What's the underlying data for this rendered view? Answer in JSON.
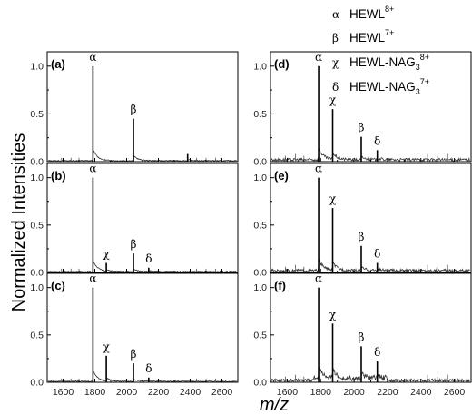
{
  "chart_data": {
    "type": "line",
    "xlabel": "m/z",
    "ylabel": "Normalized Intensities",
    "xlim": [
      1500,
      2700
    ],
    "ylim": [
      0,
      1.15
    ],
    "xticks": [
      "1600",
      "1800",
      "2000",
      "2200",
      "2400",
      "2600"
    ],
    "yticks": [
      "0.0",
      "0.5",
      "1.0"
    ],
    "legend": [
      {
        "symbol": "α",
        "label": "HEWL",
        "sup": "8+",
        "sub": ""
      },
      {
        "symbol": "β",
        "label": "HEWL",
        "sup": "7+",
        "sub": ""
      },
      {
        "symbol": "χ",
        "label": "HEWL-NAG",
        "sup": "8+",
        "sub": "3"
      },
      {
        "symbol": "δ",
        "label": "HEWL-NAG",
        "sup": "7+",
        "sub": "3"
      }
    ],
    "panels": [
      {
        "label": "(a)",
        "peaks": [
          {
            "x": 1788,
            "y": 1.0,
            "sym": "α"
          },
          {
            "x": 2043,
            "y": 0.45,
            "sym": "β"
          },
          {
            "x": 2384,
            "y": 0.08,
            "sym": ""
          }
        ]
      },
      {
        "label": "(b)",
        "peaks": [
          {
            "x": 1788,
            "y": 1.0,
            "sym": "α"
          },
          {
            "x": 1872,
            "y": 0.1,
            "sym": "χ"
          },
          {
            "x": 2043,
            "y": 0.2,
            "sym": "β"
          },
          {
            "x": 2139,
            "y": 0.05,
            "sym": "δ"
          }
        ]
      },
      {
        "label": "(c)",
        "peaks": [
          {
            "x": 1788,
            "y": 1.0,
            "sym": "α"
          },
          {
            "x": 1872,
            "y": 0.28,
            "sym": "χ"
          },
          {
            "x": 2043,
            "y": 0.2,
            "sym": "β"
          },
          {
            "x": 2139,
            "y": 0.05,
            "sym": "δ"
          }
        ]
      },
      {
        "label": "(d)",
        "peaks": [
          {
            "x": 1788,
            "y": 1.0,
            "sym": "α"
          },
          {
            "x": 1872,
            "y": 0.55,
            "sym": "χ"
          },
          {
            "x": 2043,
            "y": 0.26,
            "sym": "β"
          },
          {
            "x": 2139,
            "y": 0.12,
            "sym": "δ"
          }
        ]
      },
      {
        "label": "(e)",
        "peaks": [
          {
            "x": 1788,
            "y": 1.0,
            "sym": "α"
          },
          {
            "x": 1872,
            "y": 0.68,
            "sym": "χ"
          },
          {
            "x": 2043,
            "y": 0.28,
            "sym": "β"
          },
          {
            "x": 2139,
            "y": 0.1,
            "sym": "δ"
          }
        ]
      },
      {
        "label": "(f)",
        "peaks": [
          {
            "x": 1788,
            "y": 1.0,
            "sym": "α"
          },
          {
            "x": 1872,
            "y": 0.62,
            "sym": "χ"
          },
          {
            "x": 2043,
            "y": 0.38,
            "sym": "β"
          },
          {
            "x": 2139,
            "y": 0.22,
            "sym": "δ"
          }
        ]
      }
    ]
  }
}
